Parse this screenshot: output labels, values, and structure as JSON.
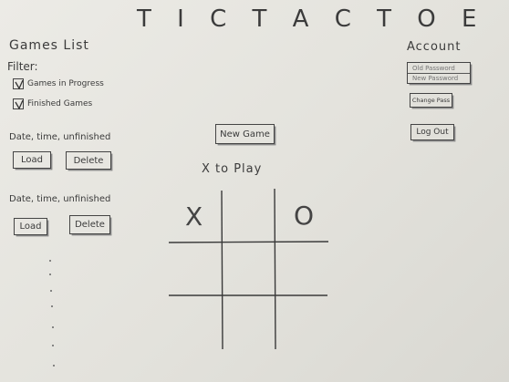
{
  "app": {
    "title": "T I C   T A C   T O E"
  },
  "games_list": {
    "heading": "Games List",
    "filter_label": "Filter:",
    "filters": [
      {
        "label": "Games in Progress",
        "checked": true
      },
      {
        "label": "Finished Games",
        "checked": true
      }
    ],
    "entries": [
      {
        "label": "Date, time, unfinished",
        "load_label": "Load",
        "delete_label": "Delete"
      },
      {
        "label": "Date, time, unfinished",
        "load_label": "Load",
        "delete_label": "Delete"
      }
    ]
  },
  "game": {
    "new_game_label": "New Game",
    "turn_status": "X to Play",
    "board": [
      "X",
      "",
      "O",
      "",
      "",
      "",
      "",
      "",
      ""
    ]
  },
  "account": {
    "heading": "Account",
    "old_password_placeholder": "Old Password",
    "new_password_placeholder": "New Password",
    "change_pass_label": "Change Pass",
    "log_out_label": "Log Out"
  },
  "colors": {
    "paper": "#e6e5e0",
    "ink": "#3a3a3a"
  },
  "icons": {
    "checkbox_checked": "check-mark-icon"
  }
}
